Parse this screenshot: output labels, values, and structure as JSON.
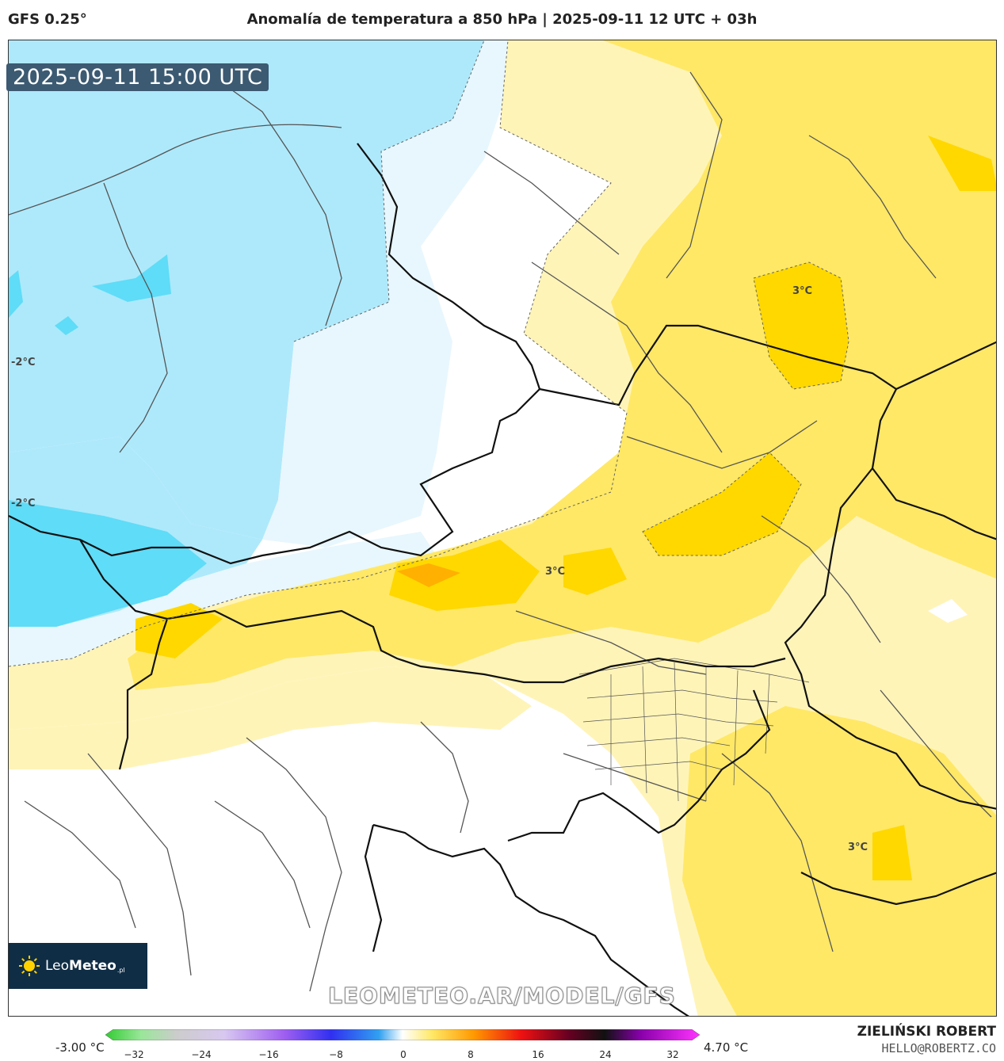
{
  "header": {
    "model": "GFS 0.25°",
    "title": "Anomalía de temperatura a 850 hPa | 2025-09-11 12 UTC + 03h"
  },
  "map": {
    "valid_time": "2025-09-11 15:00 UTC",
    "contour_labels": [
      {
        "id": "minus2-upper",
        "text": "-2°C"
      },
      {
        "id": "minus2-lower",
        "text": "-2°C"
      },
      {
        "id": "plus3-north",
        "text": "3°C"
      },
      {
        "id": "plus3-center",
        "text": "3°C"
      },
      {
        "id": "plus3-southeast",
        "text": "3°C"
      }
    ],
    "watermark": "LEOMETEO.AR/MODEL/GFS",
    "logo": {
      "name_light": "Leo",
      "name_bold": "Meteo",
      "suffix": ".pl"
    },
    "colors": {
      "cold": "#aee9fb",
      "cold_strong": "#5fdcf7",
      "cool": "#e8f7fd",
      "warm_light": "#fff4b8",
      "warm": "#ffe866",
      "warm_strong": "#ffd800",
      "hot": "#ffb000"
    }
  },
  "colorbar": {
    "min_label": "-3.00 °C",
    "max_label": "4.70 °C",
    "ticks": [
      "−32",
      "−24",
      "−16",
      "−8",
      "0",
      "8",
      "16",
      "24",
      "32"
    ]
  },
  "footer": {
    "author": "ZIELIŃSKI ROBERT",
    "email": "HELLO@ROBERTZ.CO"
  }
}
